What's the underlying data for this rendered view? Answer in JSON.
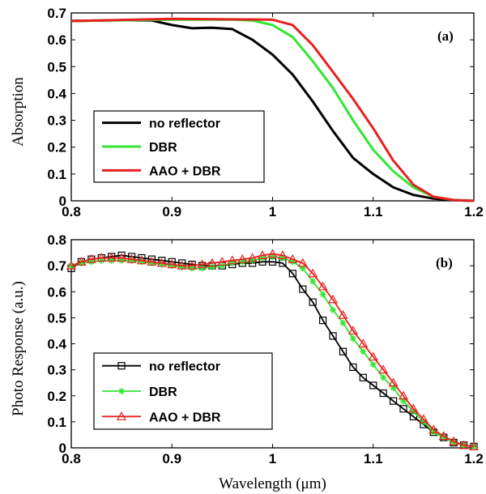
{
  "chart_data": [
    {
      "panel": "(a)",
      "type": "line",
      "xlabel": "",
      "ylabel": "Absorption",
      "xlim": [
        0.8,
        1.2
      ],
      "ylim": [
        0,
        0.7
      ],
      "xticks": [
        "0.8",
        "0.9",
        "1",
        "1.1",
        "1.2"
      ],
      "yticks": [
        "0",
        "0.1",
        "0.2",
        "0.3",
        "0.4",
        "0.5",
        "0.6",
        "0.7"
      ],
      "grid": false,
      "legend_position": "bottom-left",
      "series": [
        {
          "name": "no reflector",
          "color": "#000000",
          "marker": "none",
          "x": [
            0.8,
            0.85,
            0.88,
            0.9,
            0.92,
            0.94,
            0.96,
            0.98,
            1.0,
            1.02,
            1.04,
            1.06,
            1.08,
            1.1,
            1.12,
            1.14,
            1.16,
            1.18,
            1.2
          ],
          "y": [
            0.67,
            0.673,
            0.672,
            0.655,
            0.643,
            0.645,
            0.64,
            0.6,
            0.545,
            0.47,
            0.37,
            0.26,
            0.16,
            0.1,
            0.05,
            0.022,
            0.008,
            0.002,
            0.0
          ]
        },
        {
          "name": "DBR",
          "color": "#33e633",
          "marker": "none",
          "x": [
            0.8,
            0.9,
            0.96,
            0.98,
            1.0,
            1.02,
            1.04,
            1.06,
            1.08,
            1.1,
            1.12,
            1.14,
            1.16,
            1.18,
            1.2
          ],
          "y": [
            0.67,
            0.675,
            0.675,
            0.672,
            0.655,
            0.61,
            0.52,
            0.42,
            0.3,
            0.19,
            0.11,
            0.05,
            0.015,
            0.003,
            0.0
          ]
        },
        {
          "name": "AAO + DBR",
          "color": "#e62020",
          "marker": "none",
          "x": [
            0.8,
            0.9,
            1.0,
            1.02,
            1.04,
            1.06,
            1.08,
            1.1,
            1.12,
            1.14,
            1.16,
            1.18,
            1.2
          ],
          "y": [
            0.67,
            0.678,
            0.675,
            0.655,
            0.58,
            0.48,
            0.38,
            0.27,
            0.15,
            0.06,
            0.015,
            0.003,
            0.0
          ]
        }
      ]
    },
    {
      "panel": "(b)",
      "type": "line",
      "xlabel": "Wavelength (μm)",
      "ylabel": "Photo Response (a.u.)",
      "xlim": [
        0.8,
        1.2
      ],
      "ylim": [
        0,
        0.8
      ],
      "xticks": [
        "0.8",
        "0.9",
        "1",
        "1.1",
        "1.2"
      ],
      "yticks": [
        "0",
        "0.1",
        "0.2",
        "0.3",
        "0.4",
        "0.5",
        "0.6",
        "0.7",
        "0.8"
      ],
      "grid": false,
      "legend_position": "bottom-left",
      "series": [
        {
          "name": "no reflector",
          "color": "#000000",
          "marker": "square",
          "x": [
            0.8,
            0.81,
            0.82,
            0.83,
            0.84,
            0.85,
            0.86,
            0.87,
            0.88,
            0.89,
            0.9,
            0.91,
            0.92,
            0.93,
            0.94,
            0.95,
            0.96,
            0.97,
            0.98,
            0.99,
            1.0,
            1.01,
            1.02,
            1.03,
            1.04,
            1.05,
            1.06,
            1.07,
            1.08,
            1.09,
            1.1,
            1.11,
            1.12,
            1.13,
            1.14,
            1.15,
            1.16,
            1.17,
            1.18,
            1.19,
            1.2
          ],
          "y": [
            0.69,
            0.715,
            0.725,
            0.73,
            0.735,
            0.74,
            0.735,
            0.73,
            0.725,
            0.72,
            0.715,
            0.71,
            0.705,
            0.7,
            0.7,
            0.7,
            0.705,
            0.71,
            0.71,
            0.715,
            0.715,
            0.71,
            0.67,
            0.61,
            0.56,
            0.49,
            0.43,
            0.37,
            0.31,
            0.27,
            0.24,
            0.21,
            0.18,
            0.15,
            0.12,
            0.09,
            0.06,
            0.04,
            0.02,
            0.01,
            0.005
          ]
        },
        {
          "name": "DBR",
          "color": "#33e633",
          "marker": "star",
          "x": [
            0.8,
            0.81,
            0.82,
            0.83,
            0.84,
            0.85,
            0.86,
            0.87,
            0.88,
            0.89,
            0.9,
            0.91,
            0.92,
            0.93,
            0.94,
            0.95,
            0.96,
            0.97,
            0.98,
            0.99,
            1.0,
            1.01,
            1.02,
            1.03,
            1.04,
            1.05,
            1.06,
            1.07,
            1.08,
            1.09,
            1.1,
            1.11,
            1.12,
            1.13,
            1.14,
            1.15,
            1.16,
            1.17,
            1.18,
            1.19,
            1.2
          ],
          "y": [
            0.7,
            0.71,
            0.715,
            0.72,
            0.72,
            0.72,
            0.72,
            0.715,
            0.71,
            0.705,
            0.7,
            0.695,
            0.69,
            0.69,
            0.695,
            0.7,
            0.71,
            0.715,
            0.72,
            0.73,
            0.735,
            0.73,
            0.715,
            0.69,
            0.64,
            0.59,
            0.53,
            0.48,
            0.42,
            0.37,
            0.32,
            0.27,
            0.23,
            0.18,
            0.14,
            0.1,
            0.06,
            0.04,
            0.02,
            0.01,
            0.005
          ]
        },
        {
          "name": "AAO + DBR",
          "color": "#e62020",
          "marker": "triangle",
          "x": [
            0.8,
            0.81,
            0.82,
            0.83,
            0.84,
            0.85,
            0.86,
            0.87,
            0.88,
            0.89,
            0.9,
            0.91,
            0.92,
            0.93,
            0.94,
            0.95,
            0.96,
            0.97,
            0.98,
            0.99,
            1.0,
            1.01,
            1.02,
            1.03,
            1.04,
            1.05,
            1.06,
            1.07,
            1.08,
            1.09,
            1.1,
            1.11,
            1.12,
            1.13,
            1.14,
            1.15,
            1.16,
            1.17,
            1.18,
            1.19,
            1.2
          ],
          "y": [
            0.7,
            0.715,
            0.725,
            0.73,
            0.73,
            0.73,
            0.725,
            0.72,
            0.715,
            0.71,
            0.705,
            0.7,
            0.7,
            0.705,
            0.71,
            0.715,
            0.72,
            0.725,
            0.73,
            0.74,
            0.745,
            0.74,
            0.725,
            0.71,
            0.67,
            0.62,
            0.57,
            0.51,
            0.45,
            0.4,
            0.35,
            0.3,
            0.25,
            0.2,
            0.15,
            0.11,
            0.07,
            0.045,
            0.025,
            0.01,
            0.005
          ]
        }
      ]
    }
  ]
}
